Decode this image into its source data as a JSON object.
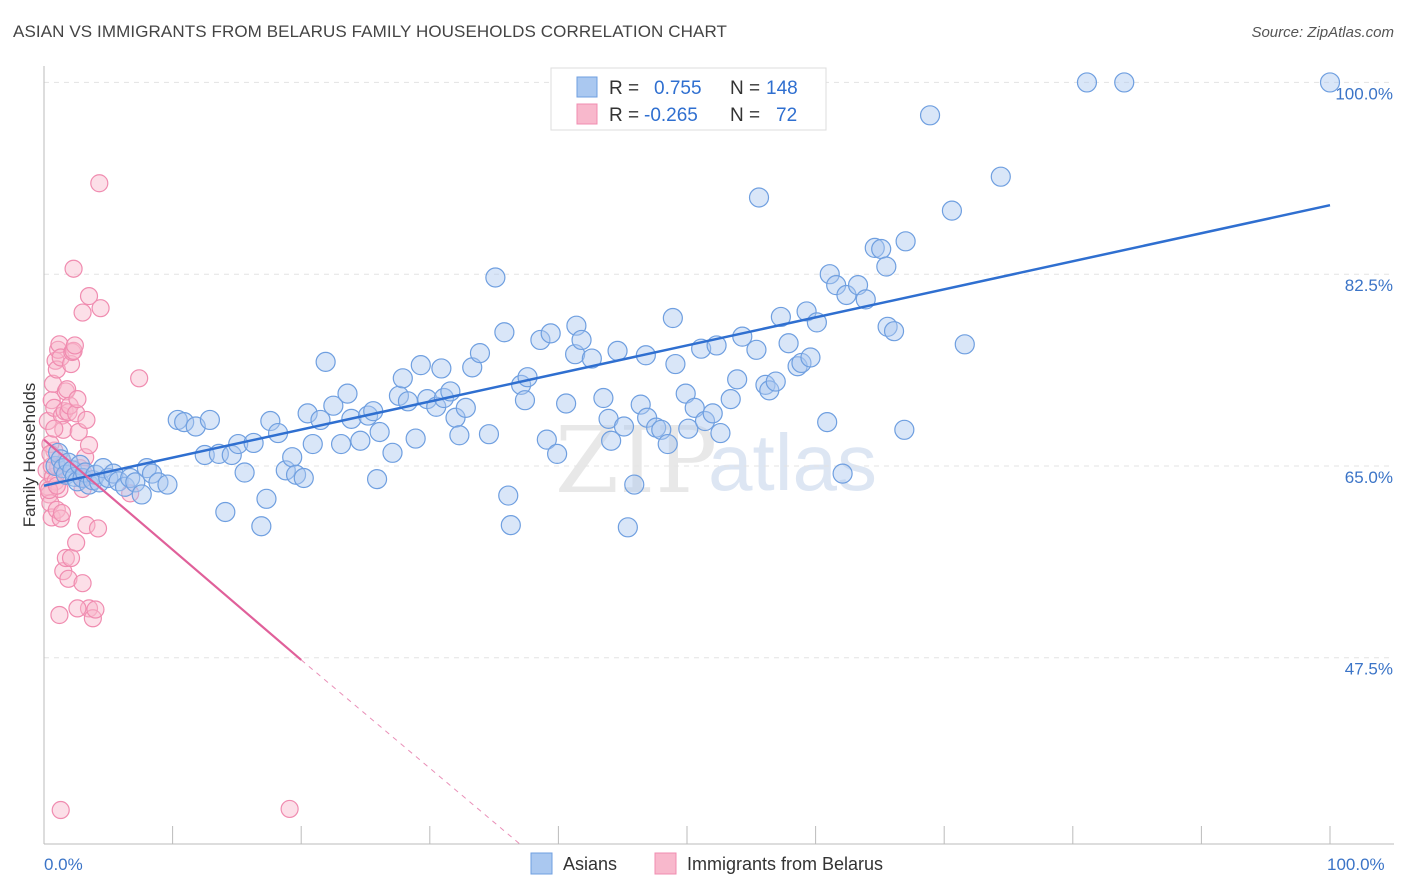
{
  "title": "ASIAN VS IMMIGRANTS FROM BELARUS FAMILY HOUSEHOLDS CORRELATION CHART",
  "source": "Source: ZipAtlas.com",
  "watermark": {
    "left": "ZIP",
    "right": "atlas"
  },
  "legend": {
    "rows": [
      {
        "r_label": "R =",
        "r_value": "0.755",
        "n_label": "N =",
        "n_value": "148",
        "color": "#6f9fe0"
      },
      {
        "r_label": "R =",
        "r_value": "-0.265",
        "n_label": "N =",
        "n_value": "72",
        "color": "#f08cb0"
      }
    ]
  },
  "bottom_legend": [
    "Asians",
    "Immigrants from Belarus"
  ],
  "colors": {
    "blue_fill": "#aac8f0",
    "blue_stroke": "#6f9fe0",
    "blue_line": "#2f6fd0",
    "pink_fill": "#f8b8cc",
    "pink_stroke": "#f08cb0",
    "pink_line": "#e0609a",
    "tick_text": "#3b74c7"
  },
  "chart_data": {
    "type": "scatter",
    "title": "ASIAN VS IMMIGRANTS FROM BELARUS FAMILY HOUSEHOLDS CORRELATION CHART",
    "xlabel": "",
    "ylabel": "Family Households",
    "x_tick_labels": [
      "0.0%",
      "100.0%"
    ],
    "y_tick_labels": [
      "100.0%",
      "82.5%",
      "65.0%",
      "47.5%"
    ],
    "y_ticks": [
      100.0,
      82.5,
      65.0,
      47.5
    ],
    "xlim": [
      0,
      100
    ],
    "ylim": [
      30.5,
      101.5
    ],
    "grid": true,
    "legend_position": "top-center",
    "series": [
      {
        "name": "Asians",
        "stats": {
          "R": 0.755,
          "N": 148
        },
        "points": [
          [
            0.9,
            65.0
          ],
          [
            1.1,
            66.2
          ],
          [
            1.3,
            65.6
          ],
          [
            1.5,
            64.8
          ],
          [
            1.7,
            64.2
          ],
          [
            1.9,
            65.3
          ],
          [
            2.2,
            64.6
          ],
          [
            2.4,
            64.0
          ],
          [
            2.6,
            63.6
          ],
          [
            2.8,
            65.1
          ],
          [
            3.0,
            63.9
          ],
          [
            3.2,
            64.4
          ],
          [
            3.5,
            63.3
          ],
          [
            3.8,
            63.7
          ],
          [
            4.0,
            64.2
          ],
          [
            4.3,
            63.5
          ],
          [
            4.6,
            64.8
          ],
          [
            5.0,
            63.9
          ],
          [
            5.4,
            64.3
          ],
          [
            5.8,
            63.6
          ],
          [
            6.3,
            63.1
          ],
          [
            6.7,
            63.9
          ],
          [
            7.1,
            63.5
          ],
          [
            7.6,
            62.4
          ],
          [
            8.0,
            64.8
          ],
          [
            8.4,
            64.3
          ],
          [
            8.9,
            63.5
          ],
          [
            9.6,
            63.3
          ],
          [
            10.4,
            69.2
          ],
          [
            10.9,
            69.0
          ],
          [
            11.8,
            68.6
          ],
          [
            12.9,
            69.2
          ],
          [
            12.5,
            66.0
          ],
          [
            13.6,
            66.1
          ],
          [
            14.1,
            60.8
          ],
          [
            14.6,
            66.0
          ],
          [
            15.1,
            67.0
          ],
          [
            15.6,
            64.4
          ],
          [
            16.3,
            67.1
          ],
          [
            16.9,
            59.5
          ],
          [
            17.3,
            62.0
          ],
          [
            17.6,
            69.1
          ],
          [
            18.2,
            68.0
          ],
          [
            18.8,
            64.6
          ],
          [
            19.3,
            65.8
          ],
          [
            19.6,
            64.2
          ],
          [
            20.2,
            63.9
          ],
          [
            20.5,
            69.8
          ],
          [
            20.9,
            67.0
          ],
          [
            21.5,
            69.2
          ],
          [
            21.9,
            74.5
          ],
          [
            22.5,
            70.5
          ],
          [
            23.1,
            67.0
          ],
          [
            23.6,
            71.6
          ],
          [
            23.9,
            69.3
          ],
          [
            24.6,
            67.3
          ],
          [
            25.2,
            69.6
          ],
          [
            25.6,
            70.0
          ],
          [
            25.9,
            63.8
          ],
          [
            26.1,
            68.1
          ],
          [
            27.1,
            66.2
          ],
          [
            27.6,
            71.4
          ],
          [
            27.9,
            73.0
          ],
          [
            28.3,
            70.9
          ],
          [
            28.9,
            67.5
          ],
          [
            29.3,
            74.2
          ],
          [
            29.8,
            71.1
          ],
          [
            30.5,
            70.4
          ],
          [
            30.9,
            73.9
          ],
          [
            31.1,
            71.2
          ],
          [
            31.6,
            71.8
          ],
          [
            32.0,
            69.4
          ],
          [
            32.3,
            67.8
          ],
          [
            32.8,
            70.3
          ],
          [
            33.3,
            74.0
          ],
          [
            33.9,
            75.3
          ],
          [
            34.6,
            67.9
          ],
          [
            35.1,
            82.2
          ],
          [
            35.8,
            77.2
          ],
          [
            36.1,
            62.3
          ],
          [
            36.3,
            59.6
          ],
          [
            37.1,
            72.4
          ],
          [
            37.4,
            71.0
          ],
          [
            37.6,
            73.1
          ],
          [
            38.6,
            76.5
          ],
          [
            39.1,
            67.4
          ],
          [
            39.4,
            77.1
          ],
          [
            39.9,
            66.1
          ],
          [
            40.6,
            70.7
          ],
          [
            41.3,
            75.2
          ],
          [
            41.4,
            77.8
          ],
          [
            41.8,
            76.5
          ],
          [
            42.6,
            74.8
          ],
          [
            43.5,
            71.2
          ],
          [
            43.9,
            69.3
          ],
          [
            44.1,
            67.3
          ],
          [
            44.6,
            75.5
          ],
          [
            45.1,
            68.6
          ],
          [
            45.4,
            59.4
          ],
          [
            45.9,
            63.3
          ],
          [
            46.4,
            70.6
          ],
          [
            46.8,
            75.1
          ],
          [
            46.9,
            69.4
          ],
          [
            47.6,
            68.5
          ],
          [
            48.0,
            68.3
          ],
          [
            48.5,
            67.0
          ],
          [
            48.9,
            78.5
          ],
          [
            49.1,
            74.3
          ],
          [
            49.9,
            71.6
          ],
          [
            50.1,
            68.4
          ],
          [
            50.6,
            70.3
          ],
          [
            51.1,
            75.7
          ],
          [
            51.4,
            69.1
          ],
          [
            52.0,
            69.8
          ],
          [
            52.3,
            76.0
          ],
          [
            52.6,
            68.0
          ],
          [
            53.4,
            71.1
          ],
          [
            53.9,
            72.9
          ],
          [
            54.3,
            76.8
          ],
          [
            55.4,
            75.6
          ],
          [
            55.6,
            89.5
          ],
          [
            56.1,
            72.4
          ],
          [
            56.4,
            71.9
          ],
          [
            56.9,
            72.7
          ],
          [
            57.3,
            78.6
          ],
          [
            57.9,
            76.2
          ],
          [
            58.6,
            74.1
          ],
          [
            58.9,
            74.4
          ],
          [
            59.3,
            79.1
          ],
          [
            59.6,
            74.9
          ],
          [
            60.1,
            78.1
          ],
          [
            60.9,
            69.0
          ],
          [
            61.1,
            82.5
          ],
          [
            61.6,
            81.5
          ],
          [
            62.1,
            64.3
          ],
          [
            62.4,
            80.6
          ],
          [
            63.3,
            81.5
          ],
          [
            63.9,
            80.2
          ],
          [
            64.6,
            84.9
          ],
          [
            65.1,
            84.8
          ],
          [
            65.5,
            83.2
          ],
          [
            65.6,
            77.7
          ],
          [
            66.1,
            77.3
          ],
          [
            66.9,
            68.3
          ],
          [
            67.0,
            85.5
          ],
          [
            68.9,
            97.0
          ],
          [
            70.6,
            88.3
          ],
          [
            71.6,
            76.1
          ],
          [
            74.4,
            91.4
          ],
          [
            81.1,
            100.0
          ],
          [
            84.0,
            100.0
          ],
          [
            100.0,
            100.0
          ]
        ],
        "trend": {
          "x": [
            0,
            100
          ],
          "y": [
            63.2,
            88.8
          ]
        }
      },
      {
        "name": "Immigrants from Belarus",
        "stats": {
          "R": -0.265,
          "N": 72
        },
        "points": [
          [
            0.2,
            64.6
          ],
          [
            0.3,
            63.1
          ],
          [
            0.4,
            62.4
          ],
          [
            0.5,
            61.6
          ],
          [
            0.6,
            60.3
          ],
          [
            0.7,
            64.0
          ],
          [
            0.8,
            66.4
          ],
          [
            0.9,
            63.6
          ],
          [
            1.0,
            61.0
          ],
          [
            1.1,
            64.9
          ],
          [
            1.2,
            62.9
          ],
          [
            1.3,
            60.2
          ],
          [
            1.4,
            60.7
          ],
          [
            1.5,
            65.3
          ],
          [
            0.3,
            69.1
          ],
          [
            0.5,
            67.0
          ],
          [
            0.6,
            71.0
          ],
          [
            0.7,
            72.5
          ],
          [
            0.8,
            70.3
          ],
          [
            0.9,
            74.6
          ],
          [
            1.0,
            73.8
          ],
          [
            1.1,
            75.6
          ],
          [
            1.2,
            76.1
          ],
          [
            1.3,
            74.9
          ],
          [
            1.4,
            69.6
          ],
          [
            1.5,
            68.3
          ],
          [
            1.6,
            70.0
          ],
          [
            1.7,
            71.8
          ],
          [
            1.8,
            72.0
          ],
          [
            1.9,
            69.9
          ],
          [
            2.0,
            70.5
          ],
          [
            2.1,
            74.3
          ],
          [
            2.2,
            75.4
          ],
          [
            2.3,
            75.5
          ],
          [
            2.4,
            76.0
          ],
          [
            2.5,
            69.8
          ],
          [
            2.6,
            71.1
          ],
          [
            2.7,
            68.1
          ],
          [
            2.8,
            64.8
          ],
          [
            2.9,
            63.9
          ],
          [
            3.0,
            62.9
          ],
          [
            3.1,
            64.3
          ],
          [
            3.2,
            65.8
          ],
          [
            3.3,
            69.2
          ],
          [
            3.5,
            66.9
          ],
          [
            1.5,
            55.4
          ],
          [
            1.7,
            56.6
          ],
          [
            1.9,
            54.7
          ],
          [
            2.1,
            56.6
          ],
          [
            2.5,
            58.0
          ],
          [
            3.0,
            54.3
          ],
          [
            3.3,
            59.6
          ],
          [
            3.5,
            52.0
          ],
          [
            3.8,
            51.1
          ],
          [
            1.2,
            51.4
          ],
          [
            2.6,
            52.0
          ],
          [
            4.0,
            51.9
          ],
          [
            4.2,
            59.3
          ],
          [
            2.3,
            83.0
          ],
          [
            4.4,
            79.4
          ],
          [
            3.0,
            79.0
          ],
          [
            3.5,
            80.5
          ],
          [
            4.3,
            90.8
          ],
          [
            7.4,
            73.0
          ],
          [
            6.7,
            62.5
          ],
          [
            0.4,
            62.8
          ],
          [
            0.6,
            65.0
          ],
          [
            0.8,
            68.4
          ],
          [
            1.0,
            63.2
          ],
          [
            1.3,
            33.6
          ],
          [
            19.1,
            33.7
          ],
          [
            0.5,
            66.1
          ]
        ],
        "trend": {
          "x": [
            0,
            20
          ],
          "y": [
            67.4,
            47.3
          ]
        },
        "trend_extension": {
          "x": [
            20,
            37
          ],
          "y": [
            47.3,
            30.5
          ]
        }
      }
    ]
  }
}
